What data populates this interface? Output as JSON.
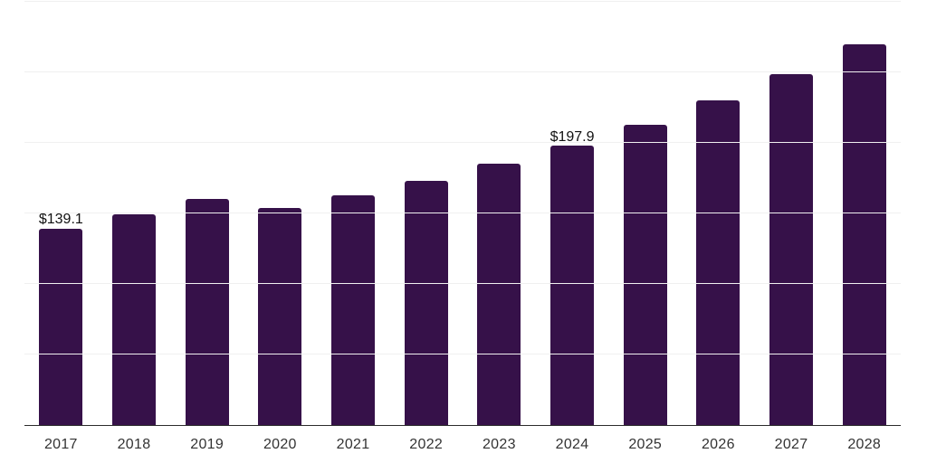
{
  "chart_data": {
    "type": "bar",
    "title": "",
    "xlabel": "",
    "ylabel": "",
    "categories": [
      "2017",
      "2018",
      "2019",
      "2020",
      "2021",
      "2022",
      "2023",
      "2024",
      "2025",
      "2026",
      "2027",
      "2028"
    ],
    "values": [
      139.1,
      149.1,
      160.4,
      154.0,
      163.0,
      172.8,
      185.0,
      197.9,
      213.1,
      229.9,
      248.9,
      270.2
    ],
    "bar_labels": [
      "$139.1",
      "",
      "",
      "",
      "",
      "",
      "",
      "$197.9",
      "",
      "",
      "",
      ""
    ],
    "ylim": [
      0,
      300
    ],
    "gridline_step": 50,
    "grid": true,
    "legend": false,
    "colors": {
      "bar": "#361149",
      "axis": "#2b2b2b",
      "gridline": "#f0f0f0",
      "value_label": "#111111",
      "tick_label": "#333333",
      "background": "#ffffff"
    }
  }
}
